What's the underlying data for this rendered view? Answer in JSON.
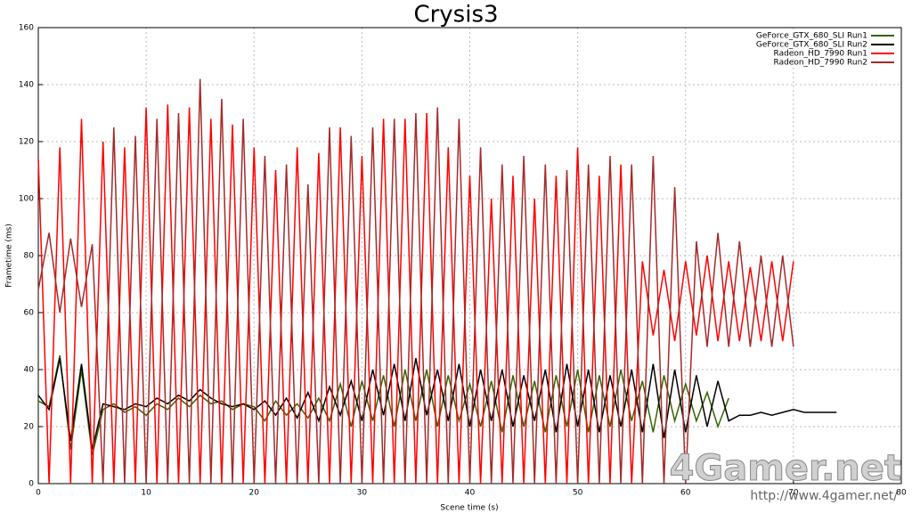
{
  "chart_data": {
    "type": "line",
    "title": "Crysis3",
    "x_label": "Scene time (s)",
    "y_label": "Frametime (ms)",
    "xlim": [
      0,
      80
    ],
    "ylim": [
      0,
      160
    ],
    "xticks": [
      0,
      10,
      20,
      30,
      40,
      50,
      60,
      70,
      80
    ],
    "yticks": [
      0,
      20,
      40,
      60,
      80,
      100,
      120,
      140,
      160
    ],
    "grid": true,
    "legend": "top-right",
    "x": [
      0,
      1,
      2,
      3,
      4,
      5,
      6,
      7,
      8,
      9,
      10,
      11,
      12,
      13,
      14,
      15,
      16,
      17,
      18,
      19,
      20,
      21,
      22,
      23,
      24,
      25,
      26,
      27,
      28,
      29,
      30,
      31,
      32,
      33,
      34,
      35,
      36,
      37,
      38,
      39,
      40,
      41,
      42,
      43,
      44,
      45,
      46,
      47,
      48,
      49,
      50,
      51,
      52,
      53,
      54,
      55,
      56,
      57,
      58,
      59,
      60,
      61,
      62,
      63,
      64,
      65,
      66,
      67,
      68,
      69,
      70,
      71,
      72,
      73,
      74
    ],
    "series": [
      {
        "name": "GeForce_GTX_680_SLI Run1",
        "color": "#336600",
        "values": [
          29,
          27,
          45,
          12,
          40,
          10,
          26,
          28,
          25,
          27,
          24,
          28,
          26,
          30,
          27,
          31,
          28,
          29,
          26,
          28,
          27,
          22,
          29,
          24,
          28,
          23,
          30,
          22,
          35,
          20,
          36,
          22,
          38,
          20,
          40,
          22,
          40,
          20,
          38,
          22,
          35,
          20,
          36,
          18,
          38,
          20,
          36,
          18,
          38,
          20,
          40,
          18,
          38,
          20,
          40,
          22,
          36,
          18,
          38,
          22,
          35,
          22,
          32,
          20,
          30,
          null,
          null,
          null,
          null,
          null,
          null,
          null,
          null,
          null,
          null
        ]
      },
      {
        "name": "GeForce_GTX_680_SLI Run2",
        "color": "#000000",
        "values": [
          31,
          26,
          44,
          15,
          42,
          12,
          28,
          27,
          26,
          28,
          27,
          30,
          28,
          31,
          29,
          33,
          30,
          28,
          27,
          28,
          26,
          29,
          24,
          30,
          23,
          32,
          22,
          34,
          24,
          36,
          22,
          40,
          24,
          42,
          22,
          44,
          24,
          40,
          22,
          42,
          20,
          40,
          22,
          40,
          20,
          38,
          22,
          40,
          18,
          42,
          20,
          40,
          18,
          38,
          20,
          40,
          18,
          42,
          16,
          40,
          18,
          38,
          20,
          36,
          22,
          24,
          24,
          25,
          24,
          25,
          26,
          25,
          25,
          25,
          25
        ]
      },
      {
        "name": "Radeon_HD_7990 Run1",
        "color": "#ff0000",
        "values": [
          114,
          0,
          118,
          0,
          128,
          0,
          120,
          0,
          118,
          0,
          132,
          0,
          133,
          0,
          132,
          0,
          128,
          0,
          126,
          0,
          118,
          0,
          110,
          0,
          118,
          0,
          116,
          0,
          125,
          0,
          115,
          0,
          128,
          0,
          128,
          0,
          130,
          0,
          118,
          0,
          108,
          0,
          100,
          0,
          108,
          0,
          100,
          0,
          108,
          0,
          118,
          0,
          108,
          0,
          112,
          0,
          78,
          52,
          75,
          50,
          78,
          52,
          80,
          50,
          78,
          50,
          76,
          50,
          78,
          50,
          78,
          null,
          null,
          null,
          null
        ]
      },
      {
        "name": "Radeon_HD_7990 Run2",
        "color": "#a52a2a",
        "values": [
          68,
          88,
          60,
          86,
          62,
          84,
          0,
          125,
          0,
          122,
          0,
          128,
          0,
          130,
          0,
          142,
          0,
          135,
          0,
          128,
          0,
          115,
          0,
          112,
          0,
          105,
          0,
          125,
          0,
          122,
          0,
          125,
          0,
          128,
          0,
          130,
          0,
          132,
          0,
          128,
          0,
          118,
          0,
          112,
          0,
          115,
          0,
          112,
          0,
          110,
          0,
          112,
          0,
          115,
          0,
          112,
          0,
          115,
          0,
          104,
          0,
          85,
          48,
          88,
          48,
          85,
          48,
          80,
          48,
          80,
          48,
          null,
          null,
          null,
          null
        ]
      }
    ]
  },
  "watermark": {
    "logo": "4Gamer.net",
    "url": "http://www.4gamer.net/"
  }
}
